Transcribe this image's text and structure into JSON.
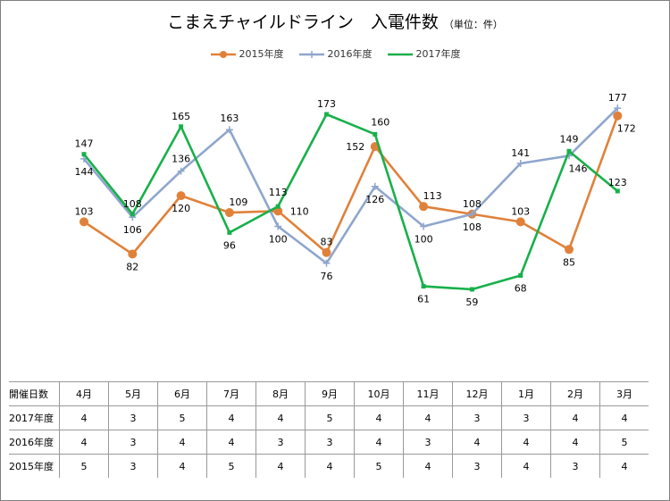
{
  "title": "こまえチャイルドライン　入電件数",
  "unit_label": "（単位：件）",
  "colors": {
    "s2015": "#E0813A",
    "s2016": "#8FA6CC",
    "s2017": "#18B04A"
  },
  "chart_data": {
    "type": "line",
    "categories": [
      "4月",
      "5月",
      "6月",
      "7月",
      "8月",
      "9月",
      "10月",
      "11月",
      "12月",
      "1月",
      "2月",
      "3月"
    ],
    "series": [
      {
        "name": "2015年度",
        "values": [
          103,
          82,
          120,
          109,
          110,
          83,
          152,
          113,
          108,
          103,
          85,
          172
        ],
        "marker": "circle"
      },
      {
        "name": "2016年度",
        "values": [
          144,
          106,
          136,
          163,
          100,
          76,
          126,
          100,
          108,
          141,
          146,
          177
        ],
        "marker": "plus"
      },
      {
        "name": "2017年度",
        "values": [
          147,
          108,
          165,
          96,
          113,
          173,
          160,
          61,
          59,
          68,
          149,
          123
        ],
        "marker": "square"
      }
    ],
    "legend": "top",
    "grid": false
  },
  "table": {
    "header_label": "開催日数",
    "rows": [
      {
        "label": "2017年度",
        "values": [
          "4",
          "3",
          "5",
          "4",
          "4",
          "5",
          "4",
          "4",
          "3",
          "3",
          "4",
          "4"
        ]
      },
      {
        "label": "2016年度",
        "values": [
          "4",
          "3",
          "4",
          "4",
          "3",
          "3",
          "4",
          "3",
          "4",
          "4",
          "4",
          "5"
        ]
      },
      {
        "label": "2015年度",
        "values": [
          "5",
          "3",
          "4",
          "5",
          "4",
          "4",
          "5",
          "4",
          "3",
          "4",
          "3",
          "4"
        ]
      }
    ]
  }
}
